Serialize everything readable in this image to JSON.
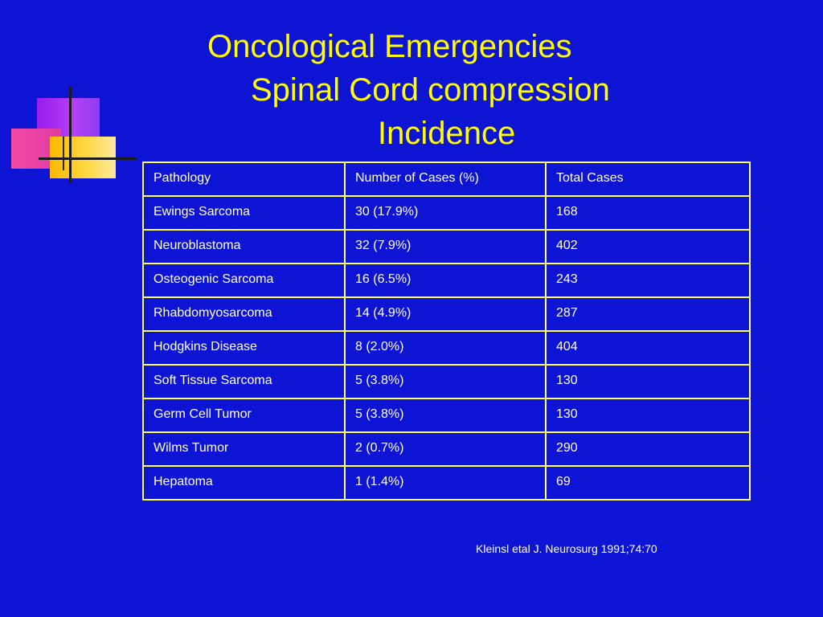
{
  "slide": {
    "title_lines": [
      "Oncological Emergencies",
      "Spinal Cord compression",
      "Incidence"
    ],
    "citation": "Kleinsl etal J. Neurosurg 1991;74:70"
  },
  "table": {
    "headers": [
      "Pathology",
      "Number of Cases (%)",
      "Total Cases"
    ],
    "rows": [
      [
        "Ewings Sarcoma",
        "30 (17.9%)",
        "168"
      ],
      [
        "Neuroblastoma",
        "32 (7.9%)",
        "402"
      ],
      [
        "Osteogenic Sarcoma",
        "16 (6.5%)",
        "243"
      ],
      [
        "Rhabdomyosarcoma",
        "14 (4.9%)",
        "287"
      ],
      [
        "Hodgkins Disease",
        "8 (2.0%)",
        "404"
      ],
      [
        "Soft Tissue Sarcoma",
        "5 (3.8%)",
        "130"
      ],
      [
        "Germ Cell Tumor",
        "5 (3.8%)",
        "130"
      ],
      [
        "Wilms Tumor",
        "2 (0.7%)",
        "290"
      ],
      [
        "Hepatoma",
        "1 (1.4%)",
        "69"
      ]
    ]
  },
  "colors": {
    "background": "#0d14d4",
    "title": "#ffff00",
    "table_border": "#ffff66",
    "text": "#ffffff"
  }
}
